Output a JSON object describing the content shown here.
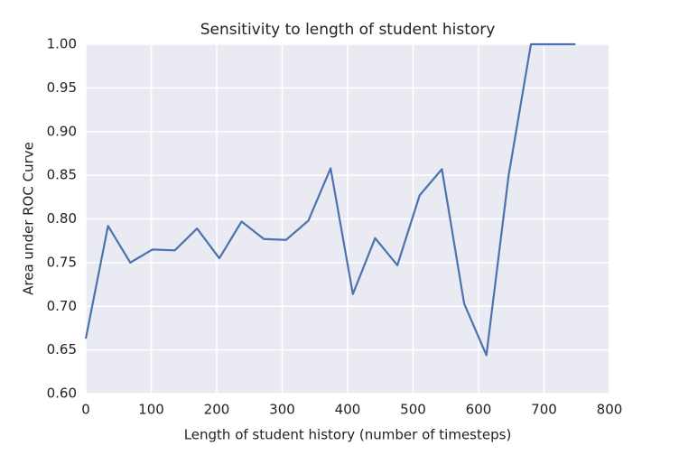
{
  "chart_data": {
    "type": "line",
    "title": "Sensitivity to length of student history",
    "xlabel": "Length of student history (number of timesteps)",
    "ylabel": "Area under ROC Curve",
    "x": [
      0,
      34,
      68,
      102,
      136,
      170,
      204,
      238,
      272,
      306,
      340,
      374,
      408,
      442,
      476,
      510,
      544,
      578,
      612,
      646,
      680,
      714,
      748
    ],
    "series": [
      {
        "color": "#4c72b0",
        "values": [
          0.663,
          0.792,
          0.75,
          0.765,
          0.764,
          0.789,
          0.755,
          0.797,
          0.777,
          0.776,
          0.798,
          0.858,
          0.714,
          0.778,
          0.747,
          0.827,
          0.857,
          0.703,
          0.644,
          0.85,
          1.0,
          1.0,
          1.0
        ]
      }
    ],
    "xlim": [
      0,
      800
    ],
    "xticks": [
      0,
      100,
      200,
      300,
      400,
      500,
      600,
      700,
      800
    ],
    "ylim": [
      0.6,
      1.0
    ],
    "yticks": [
      {
        "value": 0.6,
        "label": "0.60"
      },
      0.65,
      {
        "value": 0.7,
        "label": "0.70"
      },
      0.75,
      {
        "value": 0.8,
        "label": "0.80"
      },
      0.85,
      {
        "value": 0.9,
        "label": "0.90"
      },
      0.95,
      {
        "value": 1.0,
        "label": "1.00"
      }
    ],
    "grid": true,
    "background": "#eaeaf2"
  }
}
